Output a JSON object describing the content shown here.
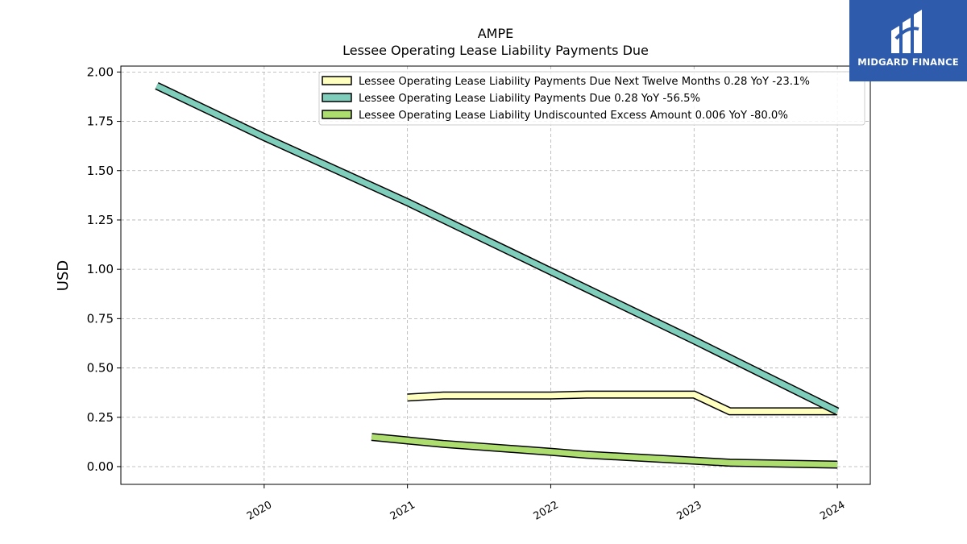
{
  "brand": {
    "name": "MIDGARD FINANCE",
    "bg_color": "#2e5bab"
  },
  "chart_data": {
    "type": "line",
    "title": "AMPE",
    "subtitle": "Lessee Operating Lease Liability Payments Due",
    "ylabel": "USD",
    "xlabel": "",
    "ylim": [
      -0.09,
      2.03
    ],
    "xlim": [
      2019.0,
      2024.23
    ],
    "y_ticks": [
      "0.00",
      "0.25",
      "0.50",
      "0.75",
      "1.00",
      "1.25",
      "1.50",
      "1.75",
      "2.00"
    ],
    "x_ticks": [
      "2020",
      "2021",
      "2022",
      "2023",
      "2024"
    ],
    "grid": true,
    "legend_position": "top-right",
    "series": [
      {
        "name": "Lessee Operating Lease Liability Payments Due Next Twelve Months",
        "legend_label": "Lessee Operating Lease Liability Payments Due Next Twelve Months  0.28 YoY -23.1%",
        "color": "#ffffbf",
        "points": [
          [
            2021.0,
            0.35
          ],
          [
            2021.25,
            0.36
          ],
          [
            2022.0,
            0.36
          ],
          [
            2022.25,
            0.365
          ],
          [
            2023.0,
            0.365
          ],
          [
            2023.25,
            0.28
          ],
          [
            2024.0,
            0.28
          ]
        ]
      },
      {
        "name": "Lessee Operating Lease Liability Payments Due",
        "legend_label": "Lessee Operating Lease Liability Payments Due  0.28 YoY -56.5%",
        "color": "#7fcdbb",
        "points": [
          [
            2019.25,
            1.93
          ],
          [
            2020.0,
            1.67
          ],
          [
            2021.0,
            1.34
          ],
          [
            2022.0,
            0.99
          ],
          [
            2023.0,
            0.64
          ],
          [
            2024.0,
            0.28
          ]
        ]
      },
      {
        "name": "Lessee Operating Lease Liability Undiscounted Excess Amount",
        "legend_label": "Lessee Operating Lease Liability Undiscounted Excess Amount  0.006 YoY -80.0%",
        "color": "#addd6e",
        "points": [
          [
            2020.75,
            0.15
          ],
          [
            2021.25,
            0.115
          ],
          [
            2022.0,
            0.075
          ],
          [
            2022.25,
            0.06
          ],
          [
            2023.0,
            0.03
          ],
          [
            2023.25,
            0.02
          ],
          [
            2024.0,
            0.01
          ]
        ]
      }
    ]
  }
}
